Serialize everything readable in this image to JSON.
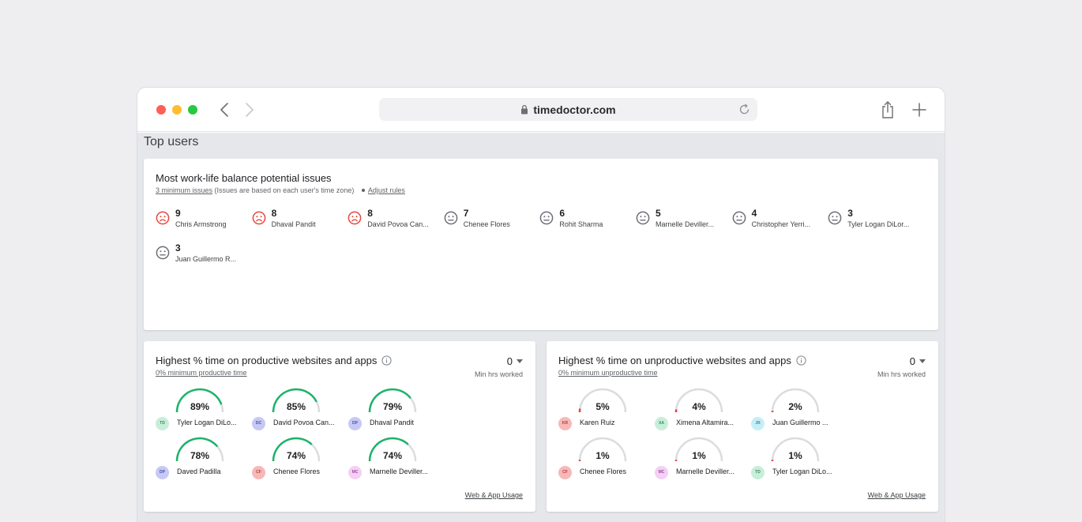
{
  "browser": {
    "url": "timedoctor.com"
  },
  "page": {
    "title": "Top users"
  },
  "wlb": {
    "title": "Most work-life balance potential issues",
    "min_issues_link": "3 minimum issues",
    "note": "(Issues are based on each user's time zone)",
    "adjust_link": "Adjust rules",
    "users": [
      {
        "count": "9",
        "name": "Chris Armstrong",
        "mood": "sad",
        "color": "#e8453c"
      },
      {
        "count": "8",
        "name": "Dhaval Pandit",
        "mood": "sad",
        "color": "#e8453c"
      },
      {
        "count": "8",
        "name": "David Povoa Can...",
        "mood": "sad",
        "color": "#e8453c"
      },
      {
        "count": "7",
        "name": "Chenee Flores",
        "mood": "neutral",
        "color": "#6b6e76"
      },
      {
        "count": "6",
        "name": "Rohit Sharma",
        "mood": "neutral",
        "color": "#6b6e76"
      },
      {
        "count": "5",
        "name": "Marnelle Deviller...",
        "mood": "neutral",
        "color": "#6b6e76"
      },
      {
        "count": "4",
        "name": "Christopher Yerri...",
        "mood": "neutral",
        "color": "#6b6e76"
      },
      {
        "count": "3",
        "name": "Tyler Logan DiLor...",
        "mood": "neutral",
        "color": "#6b6e76"
      },
      {
        "count": "3",
        "name": "Juan Guillermo R...",
        "mood": "neutral",
        "color": "#6b6e76"
      }
    ]
  },
  "productive": {
    "title": "Highest % time on productive websites and apps",
    "min_link": "0% minimum productive time",
    "min_hours_value": "0",
    "min_hours_label": "Min hrs worked",
    "footer_link": "Web & App Usage",
    "arc_color": "#1db36b",
    "users": [
      {
        "value": 89,
        "pct": "89%",
        "initials": "TD",
        "name": "Tyler Logan DiLo...",
        "avatar_bg": "#c8eed9",
        "avatar_fg": "#3c8a5d"
      },
      {
        "value": 85,
        "pct": "85%",
        "initials": "DC",
        "name": "David Povoa Can...",
        "avatar_bg": "#c6c9f3",
        "avatar_fg": "#4a4fa3"
      },
      {
        "value": 79,
        "pct": "79%",
        "initials": "DP",
        "name": "Dhaval Pandit",
        "avatar_bg": "#c6c9f3",
        "avatar_fg": "#4a4fa3"
      },
      {
        "value": 78,
        "pct": "78%",
        "initials": "DP",
        "name": "Daved Padilla",
        "avatar_bg": "#c6c9f3",
        "avatar_fg": "#4a4fa3"
      },
      {
        "value": 74,
        "pct": "74%",
        "initials": "CF",
        "name": "Chenee Flores",
        "avatar_bg": "#f7b8b8",
        "avatar_fg": "#b23b3b"
      },
      {
        "value": 74,
        "pct": "74%",
        "initials": "MC",
        "name": "Marnelle Deviller...",
        "avatar_bg": "#f4d0f4",
        "avatar_fg": "#9a4b9a"
      }
    ]
  },
  "unproductive": {
    "title": "Highest % time on unproductive websites and apps",
    "min_link": "0% minimum unproductive time",
    "min_hours_value": "0",
    "min_hours_label": "Min hrs worked",
    "footer_link": "Web & App Usage",
    "arc_color": "#e8453c",
    "users": [
      {
        "value": 5,
        "pct": "5%",
        "initials": "KR",
        "name": "Karen Ruiz",
        "avatar_bg": "#f7b8b8",
        "avatar_fg": "#b23b3b"
      },
      {
        "value": 4,
        "pct": "4%",
        "initials": "XA",
        "name": "Ximena Altamira...",
        "avatar_bg": "#c8eed9",
        "avatar_fg": "#3c8a5d"
      },
      {
        "value": 2,
        "pct": "2%",
        "initials": "JR",
        "name": "Juan Guillermo ...",
        "avatar_bg": "#c6eef7",
        "avatar_fg": "#3b8aa0"
      },
      {
        "value": 1,
        "pct": "1%",
        "initials": "CF",
        "name": "Chenee Flores",
        "avatar_bg": "#f7b8b8",
        "avatar_fg": "#b23b3b"
      },
      {
        "value": 1,
        "pct": "1%",
        "initials": "MC",
        "name": "Marnelle Deviller...",
        "avatar_bg": "#f4d0f4",
        "avatar_fg": "#9a4b9a"
      },
      {
        "value": 1,
        "pct": "1%",
        "initials": "TD",
        "name": "Tyler Logan DiLo...",
        "avatar_bg": "#c8eed9",
        "avatar_fg": "#3c8a5d"
      }
    ]
  }
}
